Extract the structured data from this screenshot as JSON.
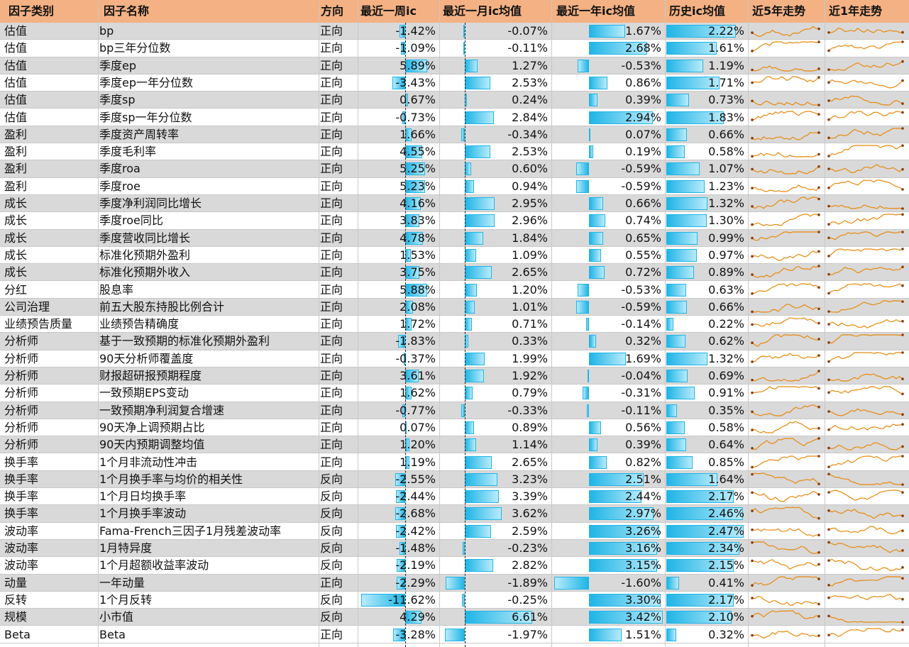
{
  "headers": [
    "因子类别",
    "因子名称",
    "方向",
    "最近一周ic",
    "最近一月ic均值",
    "最近一年ic均值",
    "历史ic均值",
    "近5年走势",
    "近1年走势"
  ],
  "colors": {
    "header_bg": "#f4b183",
    "row_shade": "#d9d9d9",
    "bar": "#1fb5e6",
    "spark": "#e8890c"
  },
  "rows": [
    {
      "category": "估值",
      "name": "bp",
      "direction": "正向",
      "week": "-1.42%",
      "month": "-0.07%",
      "year": "1.67%",
      "hist": "2.22%",
      "w": -1.42,
      "m": -0.07,
      "y": 1.67,
      "h": 2.22
    },
    {
      "category": "估值",
      "name": "bp三年分位数",
      "direction": "正向",
      "week": "-1.09%",
      "month": "-0.11%",
      "year": "2.68%",
      "hist": "1.61%",
      "w": -1.09,
      "m": -0.11,
      "y": 2.68,
      "h": 1.61
    },
    {
      "category": "估值",
      "name": "季度ep",
      "direction": "正向",
      "week": "5.89%",
      "month": "1.27%",
      "year": "-0.53%",
      "hist": "1.19%",
      "w": 5.89,
      "m": 1.27,
      "y": -0.53,
      "h": 1.19
    },
    {
      "category": "估值",
      "name": "季度ep一年分位数",
      "direction": "正向",
      "week": "-3.43%",
      "month": "2.53%",
      "year": "0.86%",
      "hist": "1.71%",
      "w": -3.43,
      "m": 2.53,
      "y": 0.86,
      "h": 1.71
    },
    {
      "category": "估值",
      "name": "季度sp",
      "direction": "正向",
      "week": "0.67%",
      "month": "0.24%",
      "year": "0.39%",
      "hist": "0.73%",
      "w": 0.67,
      "m": 0.24,
      "y": 0.39,
      "h": 0.73
    },
    {
      "category": "估值",
      "name": "季度sp一年分位数",
      "direction": "正向",
      "week": "-0.73%",
      "month": "2.84%",
      "year": "2.94%",
      "hist": "1.83%",
      "w": -0.73,
      "m": 2.84,
      "y": 2.94,
      "h": 1.83
    },
    {
      "category": "盈利",
      "name": "季度资产周转率",
      "direction": "正向",
      "week": "1.66%",
      "month": "-0.34%",
      "year": "0.07%",
      "hist": "0.66%",
      "w": 1.66,
      "m": -0.34,
      "y": 0.07,
      "h": 0.66
    },
    {
      "category": "盈利",
      "name": "季度毛利率",
      "direction": "正向",
      "week": "4.55%",
      "month": "2.53%",
      "year": "0.19%",
      "hist": "0.58%",
      "w": 4.55,
      "m": 2.53,
      "y": 0.19,
      "h": 0.58
    },
    {
      "category": "盈利",
      "name": "季度roa",
      "direction": "正向",
      "week": "5.25%",
      "month": "0.60%",
      "year": "-0.59%",
      "hist": "1.07%",
      "w": 5.25,
      "m": 0.6,
      "y": -0.59,
      "h": 1.07
    },
    {
      "category": "盈利",
      "name": "季度roe",
      "direction": "正向",
      "week": "5.23%",
      "month": "0.94%",
      "year": "-0.59%",
      "hist": "1.23%",
      "w": 5.23,
      "m": 0.94,
      "y": -0.59,
      "h": 1.23
    },
    {
      "category": "成长",
      "name": "季度净利润同比增长",
      "direction": "正向",
      "week": "4.16%",
      "month": "2.95%",
      "year": "0.66%",
      "hist": "1.32%",
      "w": 4.16,
      "m": 2.95,
      "y": 0.66,
      "h": 1.32
    },
    {
      "category": "成长",
      "name": "季度roe同比",
      "direction": "正向",
      "week": "3.83%",
      "month": "2.96%",
      "year": "0.74%",
      "hist": "1.30%",
      "w": 3.83,
      "m": 2.96,
      "y": 0.74,
      "h": 1.3
    },
    {
      "category": "成长",
      "name": "季度营收同比增长",
      "direction": "正向",
      "week": "4.78%",
      "month": "1.84%",
      "year": "0.65%",
      "hist": "0.99%",
      "w": 4.78,
      "m": 1.84,
      "y": 0.65,
      "h": 0.99
    },
    {
      "category": "成长",
      "name": "标准化预期外盈利",
      "direction": "正向",
      "week": "1.53%",
      "month": "1.09%",
      "year": "0.55%",
      "hist": "0.97%",
      "w": 1.53,
      "m": 1.09,
      "y": 0.55,
      "h": 0.97
    },
    {
      "category": "成长",
      "name": "标准化预期外收入",
      "direction": "正向",
      "week": "3.75%",
      "month": "2.65%",
      "year": "0.72%",
      "hist": "0.89%",
      "w": 3.75,
      "m": 2.65,
      "y": 0.72,
      "h": 0.89
    },
    {
      "category": "分红",
      "name": "股息率",
      "direction": "正向",
      "week": "5.88%",
      "month": "1.20%",
      "year": "-0.53%",
      "hist": "0.63%",
      "w": 5.88,
      "m": 1.2,
      "y": -0.53,
      "h": 0.63
    },
    {
      "category": "公司治理",
      "name": "前五大股东持股比例合计",
      "direction": "正向",
      "week": "2.08%",
      "month": "1.01%",
      "year": "-0.59%",
      "hist": "0.66%",
      "w": 2.08,
      "m": 1.01,
      "y": -0.59,
      "h": 0.66
    },
    {
      "category": "业绩预告质量",
      "name": "业绩预告精确度",
      "direction": "正向",
      "week": "1.72%",
      "month": "0.71%",
      "year": "-0.14%",
      "hist": "0.22%",
      "w": 1.72,
      "m": 0.71,
      "y": -0.14,
      "h": 0.22
    },
    {
      "category": "分析师",
      "name": "基于一致预期的标准化预期外盈利",
      "direction": "正向",
      "week": "-1.83%",
      "month": "0.33%",
      "year": "0.32%",
      "hist": "0.62%",
      "w": -1.83,
      "m": 0.33,
      "y": 0.32,
      "h": 0.62
    },
    {
      "category": "分析师",
      "name": "90天分析师覆盖度",
      "direction": "正向",
      "week": "-0.37%",
      "month": "1.99%",
      "year": "1.69%",
      "hist": "1.32%",
      "w": -0.37,
      "m": 1.99,
      "y": 1.69,
      "h": 1.32
    },
    {
      "category": "分析师",
      "name": "财报超研报预期程度",
      "direction": "正向",
      "week": "3.61%",
      "month": "1.92%",
      "year": "-0.04%",
      "hist": "0.69%",
      "w": 3.61,
      "m": 1.92,
      "y": -0.04,
      "h": 0.69
    },
    {
      "category": "分析师",
      "name": "一致预期EPS变动",
      "direction": "正向",
      "week": "1.62%",
      "month": "0.79%",
      "year": "-0.31%",
      "hist": "0.91%",
      "w": 1.62,
      "m": 0.79,
      "y": -0.31,
      "h": 0.91
    },
    {
      "category": "分析师",
      "name": "一致预期净利润复合增速",
      "direction": "正向",
      "week": "-0.77%",
      "month": "-0.33%",
      "year": "-0.11%",
      "hist": "0.35%",
      "w": -0.77,
      "m": -0.33,
      "y": -0.11,
      "h": 0.35
    },
    {
      "category": "分析师",
      "name": "90天净上调预期占比",
      "direction": "正向",
      "week": "0.07%",
      "month": "0.89%",
      "year": "0.56%",
      "hist": "0.58%",
      "w": 0.07,
      "m": 0.89,
      "y": 0.56,
      "h": 0.58
    },
    {
      "category": "分析师",
      "name": "90天内预期调整均值",
      "direction": "正向",
      "week": "1.20%",
      "month": "1.14%",
      "year": "0.39%",
      "hist": "0.64%",
      "w": 1.2,
      "m": 1.14,
      "y": 0.39,
      "h": 0.64
    },
    {
      "category": "换手率",
      "name": "1个月非流动性冲击",
      "direction": "正向",
      "week": "1.19%",
      "month": "2.65%",
      "year": "0.82%",
      "hist": "0.85%",
      "w": 1.19,
      "m": 2.65,
      "y": 0.82,
      "h": 0.85
    },
    {
      "category": "换手率",
      "name": "1个月换手率与均价的相关性",
      "direction": "反向",
      "week": "-2.55%",
      "month": "3.23%",
      "year": "2.51%",
      "hist": "1.64%",
      "w": -2.55,
      "m": 3.23,
      "y": 2.51,
      "h": 1.64
    },
    {
      "category": "换手率",
      "name": "1个月日均换手率",
      "direction": "反向",
      "week": "-2.44%",
      "month": "3.39%",
      "year": "2.44%",
      "hist": "2.17%",
      "w": -2.44,
      "m": 3.39,
      "y": 2.44,
      "h": 2.17
    },
    {
      "category": "换手率",
      "name": "1个月换手率波动",
      "direction": "反向",
      "week": "-2.68%",
      "month": "3.62%",
      "year": "2.97%",
      "hist": "2.46%",
      "w": -2.68,
      "m": 3.62,
      "y": 2.97,
      "h": 2.46
    },
    {
      "category": "波动率",
      "name": "Fama-French三因子1月残差波动率",
      "direction": "反向",
      "week": "-2.42%",
      "month": "2.59%",
      "year": "3.26%",
      "hist": "2.47%",
      "w": -2.42,
      "m": 2.59,
      "y": 3.26,
      "h": 2.47
    },
    {
      "category": "波动率",
      "name": "1月特异度",
      "direction": "反向",
      "week": "-1.48%",
      "month": "-0.23%",
      "year": "3.16%",
      "hist": "2.34%",
      "w": -1.48,
      "m": -0.23,
      "y": 3.16,
      "h": 2.34
    },
    {
      "category": "波动率",
      "name": "1个月超额收益率波动",
      "direction": "反向",
      "week": "-2.19%",
      "month": "2.82%",
      "year": "3.15%",
      "hist": "2.15%",
      "w": -2.19,
      "m": 2.82,
      "y": 3.15,
      "h": 2.15
    },
    {
      "category": "动量",
      "name": "一年动量",
      "direction": "正向",
      "week": "-2.29%",
      "month": "-1.89%",
      "year": "-1.60%",
      "hist": "0.41%",
      "w": -2.29,
      "m": -1.89,
      "y": -1.6,
      "h": 0.41
    },
    {
      "category": "反转",
      "name": "1个月反转",
      "direction": "反向",
      "week": "-11.62%",
      "month": "-0.25%",
      "year": "3.30%",
      "hist": "2.17%",
      "w": -11.62,
      "m": -0.25,
      "y": 3.3,
      "h": 2.17
    },
    {
      "category": "规模",
      "name": "小市值",
      "direction": "反向",
      "week": "4.29%",
      "month": "6.61%",
      "year": "3.42%",
      "hist": "2.10%",
      "w": 4.29,
      "m": 6.61,
      "y": 3.42,
      "h": 2.1
    },
    {
      "category": "Beta",
      "name": "Beta",
      "direction": "正向",
      "week": "-3.28%",
      "month": "-1.97%",
      "year": "1.51%",
      "hist": "0.32%",
      "w": -3.28,
      "m": -1.97,
      "y": 1.51,
      "h": 0.32
    }
  ]
}
